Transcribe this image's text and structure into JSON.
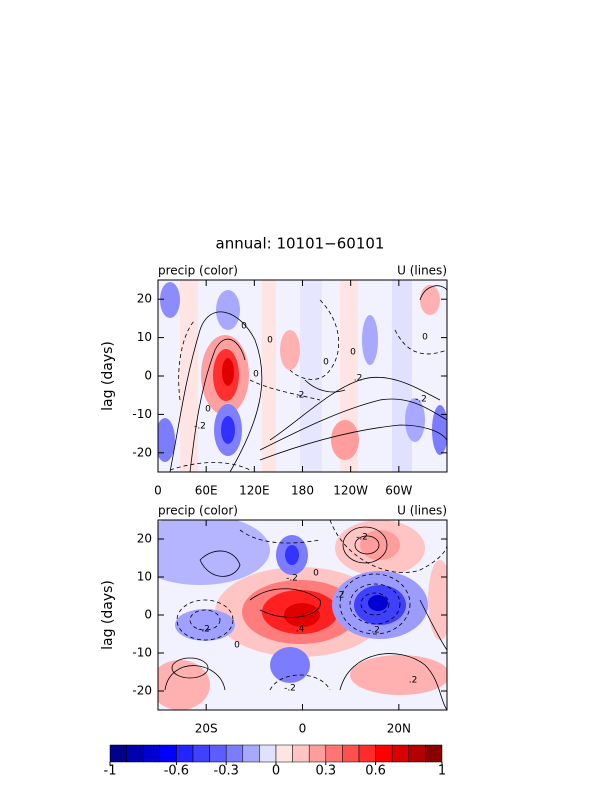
{
  "title": "annual: 10101−60101",
  "chart_data": [
    {
      "type": "contour",
      "left_label": "precip (color)",
      "right_label": "U (lines)",
      "ylabel": "lag (days)",
      "xlim": [
        0,
        360
      ],
      "xticks": [
        0,
        {
          "value": 60,
          "label": "60E"
        },
        {
          "value": 120,
          "label": "120E"
        },
        180,
        {
          "value": 240,
          "label": "120W"
        },
        {
          "value": 300,
          "label": "60W"
        }
      ],
      "ylim": [
        -25,
        25
      ],
      "yticks": [
        -20,
        -10,
        0,
        10,
        20
      ],
      "contour_labels": [
        "0",
        "0",
        "0",
        "0",
        "0",
        ".2",
        "-.2",
        "0",
        "0",
        "-.2",
        ".2"
      ]
    },
    {
      "type": "contour",
      "left_label": "precip (color)",
      "right_label": "U (lines)",
      "ylabel": "lag (days)",
      "xlim": [
        -30,
        30
      ],
      "xticks": [
        {
          "value": -20,
          "label": "20S"
        },
        0,
        {
          "value": 20,
          "label": "20N"
        }
      ],
      "ylim": [
        -25,
        25
      ],
      "yticks": [
        -20,
        -10,
        0,
        10,
        20
      ],
      "contour_labels": [
        "-.2",
        "-.2",
        "0",
        ".2",
        "-.2",
        ".4",
        "-.2",
        ".2",
        "0",
        "-.2"
      ]
    }
  ],
  "colorbar": {
    "levels": [
      -1,
      -0.9,
      -0.8,
      -0.7,
      -0.6,
      -0.5,
      -0.4,
      -0.3,
      -0.2,
      -0.1,
      0,
      0.1,
      0.2,
      0.3,
      0.4,
      0.5,
      0.6,
      0.7,
      0.8,
      0.9,
      1
    ],
    "colors": [
      "#00008b",
      "#0000b0",
      "#0000d2",
      "#0000ff",
      "#2424ff",
      "#4040ff",
      "#5c5cff",
      "#7c7cff",
      "#a8a8ff",
      "#e0e0ff",
      "#ffe4e4",
      "#ffc4c4",
      "#ff9c9c",
      "#ff7474",
      "#ff5050",
      "#ff2c2c",
      "#ff0000",
      "#da0000",
      "#b40000",
      "#8b0000"
    ],
    "ticks": [
      -1,
      -0.6,
      -0.3,
      0,
      0.3,
      0.6,
      1
    ]
  }
}
